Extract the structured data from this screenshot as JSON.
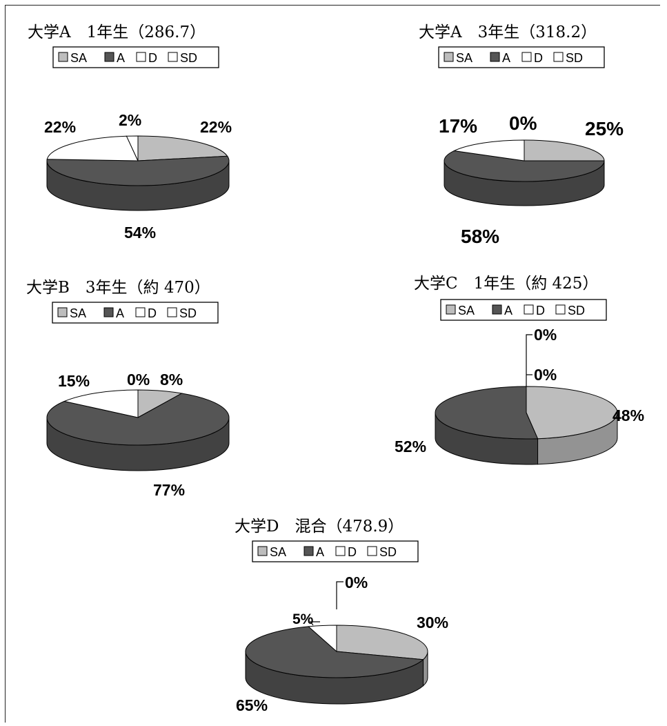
{
  "colors": {
    "SA": "#bdbdbd",
    "A": "#555555",
    "D": "#ffffff",
    "SD": "#ffffff"
  },
  "chart_data": [
    {
      "type": "pie",
      "title": "大学A　1年生（286.7）",
      "legend": [
        "SA",
        "A",
        "D",
        "SD"
      ],
      "categories": [
        "SA",
        "A",
        "D",
        "SD"
      ],
      "values": [
        22,
        54,
        22,
        2
      ],
      "labels": [
        "22%",
        "54%",
        "22%",
        "2%"
      ],
      "legend_position": "top"
    },
    {
      "type": "pie",
      "title": "大学A　3年生（318.2）",
      "legend": [
        "SA",
        "A",
        "D",
        "SD"
      ],
      "categories": [
        "SA",
        "A",
        "D",
        "SD"
      ],
      "values": [
        25,
        58,
        17,
        0
      ],
      "labels": [
        "25%",
        "58%",
        "17%",
        "0%"
      ],
      "legend_position": "top"
    },
    {
      "type": "pie",
      "title": "大学B　3年生（約 470）",
      "legend": [
        "SA",
        "A",
        "D",
        "SD"
      ],
      "categories": [
        "SA",
        "A",
        "D",
        "SD"
      ],
      "values": [
        8,
        77,
        15,
        0
      ],
      "labels": [
        "8%",
        "77%",
        "15%",
        "0%"
      ],
      "legend_position": "top"
    },
    {
      "type": "pie",
      "title": "大学C　1年生（約 425）",
      "legend": [
        "SA",
        "A",
        "D",
        "SD"
      ],
      "categories": [
        "SA",
        "A",
        "D",
        "SD"
      ],
      "values": [
        48,
        52,
        0,
        0
      ],
      "labels": [
        "48%",
        "52%",
        "0%",
        "0%"
      ],
      "legend_position": "top"
    },
    {
      "type": "pie",
      "title": "大学D　混合（478.9）",
      "legend": [
        "SA",
        "A",
        "D",
        "SD"
      ],
      "categories": [
        "SA",
        "A",
        "D",
        "SD"
      ],
      "values": [
        30,
        65,
        5,
        0
      ],
      "labels": [
        "30%",
        "65%",
        "5%",
        "0%"
      ],
      "legend_position": "top"
    }
  ]
}
